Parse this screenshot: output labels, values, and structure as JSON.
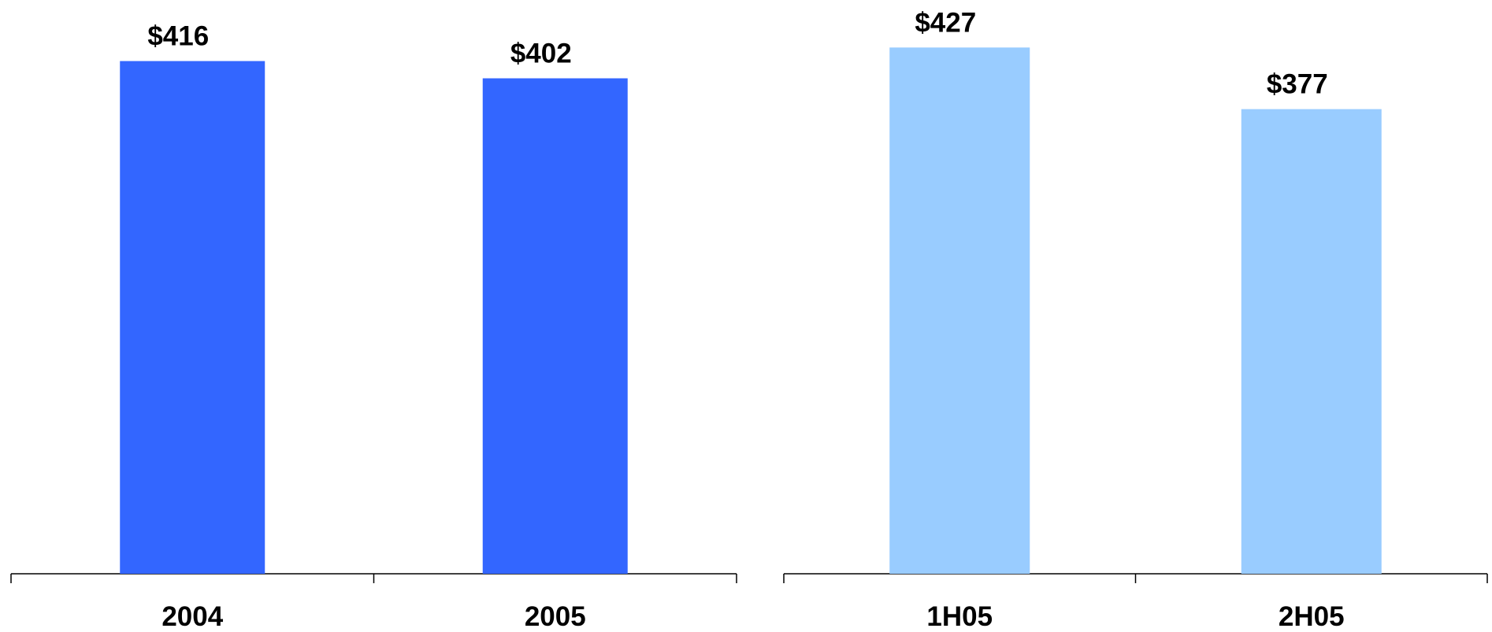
{
  "chart_data": [
    {
      "type": "bar",
      "categories": [
        "2004",
        "2005"
      ],
      "values": [
        416,
        402
      ],
      "value_labels": [
        "$416",
        "$402"
      ],
      "color": "#3366FF",
      "title": "",
      "xlabel": "",
      "ylabel": "",
      "ylim": [
        0,
        440
      ],
      "grid": false,
      "legend": "none"
    },
    {
      "type": "bar",
      "categories": [
        "1H05",
        "2H05"
      ],
      "values": [
        427,
        377
      ],
      "value_labels": [
        "$427",
        "$377"
      ],
      "color": "#99CCFF",
      "title": "",
      "xlabel": "",
      "ylabel": "",
      "ylim": [
        0,
        440
      ],
      "grid": false,
      "legend": "none"
    }
  ]
}
